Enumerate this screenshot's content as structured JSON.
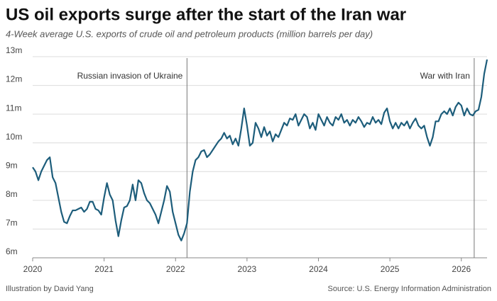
{
  "chart_data": {
    "type": "line",
    "title": "US oil exports surge after the start of the Iran war",
    "subtitle": "4-Week average U.S. exports of crude oil and petroleum products (million barrels per day)",
    "credit": "Illustration by David Yang",
    "source": "Source: U.S. Energy Information Administration",
    "color": "#1d5d7b",
    "grid": true,
    "xlim": [
      2020,
      2026.36
    ],
    "xticks": [
      2020,
      2021,
      2022,
      2023,
      2024,
      2025,
      2026
    ],
    "ylim": [
      6,
      13
    ],
    "yticks": [
      {
        "value": 6,
        "label": "6m"
      },
      {
        "value": 7,
        "label": "7m"
      },
      {
        "value": 8,
        "label": "8m"
      },
      {
        "value": 9,
        "label": "9m"
      },
      {
        "value": 10,
        "label": "10m"
      },
      {
        "value": 11,
        "label": "11m"
      },
      {
        "value": 12,
        "label": "12m"
      },
      {
        "value": 13,
        "label": "13m"
      }
    ],
    "annotations": [
      {
        "text": "Russian invasion of Ukraine",
        "x": 2022.16
      },
      {
        "text": "War with Iran",
        "x": 2026.18
      }
    ],
    "x": [
      2020,
      2020.04,
      2020.08,
      2020.12,
      2020.16,
      2020.2,
      2020.24,
      2020.28,
      2020.32,
      2020.36,
      2020.4,
      2020.44,
      2020.48,
      2020.52,
      2020.56,
      2020.6,
      2020.64,
      2020.68,
      2020.72,
      2020.76,
      2020.8,
      2020.84,
      2020.88,
      2020.92,
      2020.96,
      2021,
      2021.04,
      2021.08,
      2021.12,
      2021.16,
      2021.2,
      2021.24,
      2021.28,
      2021.32,
      2021.36,
      2021.4,
      2021.44,
      2021.48,
      2021.52,
      2021.56,
      2021.6,
      2021.64,
      2021.68,
      2021.72,
      2021.76,
      2021.8,
      2021.84,
      2021.88,
      2021.92,
      2021.96,
      2022,
      2022.04,
      2022.08,
      2022.12,
      2022.16,
      2022.2,
      2022.24,
      2022.28,
      2022.32,
      2022.36,
      2022.4,
      2022.44,
      2022.48,
      2022.52,
      2022.56,
      2022.6,
      2022.64,
      2022.68,
      2022.72,
      2022.76,
      2022.8,
      2022.84,
      2022.88,
      2022.92,
      2022.96,
      2023,
      2023.04,
      2023.08,
      2023.12,
      2023.16,
      2023.2,
      2023.24,
      2023.28,
      2023.32,
      2023.36,
      2023.4,
      2023.44,
      2023.48,
      2023.52,
      2023.56,
      2023.6,
      2023.64,
      2023.68,
      2023.72,
      2023.76,
      2023.8,
      2023.84,
      2023.88,
      2023.92,
      2023.96,
      2024,
      2024.04,
      2024.08,
      2024.12,
      2024.16,
      2024.2,
      2024.24,
      2024.28,
      2024.32,
      2024.36,
      2024.4,
      2024.44,
      2024.48,
      2024.52,
      2024.56,
      2024.6,
      2024.64,
      2024.68,
      2024.72,
      2024.76,
      2024.8,
      2024.84,
      2024.88,
      2024.92,
      2024.96,
      2025,
      2025.04,
      2025.08,
      2025.12,
      2025.16,
      2025.2,
      2025.24,
      2025.28,
      2025.32,
      2025.36,
      2025.4,
      2025.44,
      2025.48,
      2025.52,
      2025.56,
      2025.6,
      2025.64,
      2025.68,
      2025.72,
      2025.76,
      2025.8,
      2025.84,
      2025.88,
      2025.92,
      2025.96,
      2026,
      2026.04,
      2026.08,
      2026.12,
      2026.16,
      2026.2,
      2026.24,
      2026.28,
      2026.32,
      2026.36
    ],
    "values": [
      9.15,
      9.0,
      8.7,
      9.0,
      9.2,
      9.4,
      9.5,
      8.8,
      8.6,
      8.1,
      7.6,
      7.25,
      7.2,
      7.45,
      7.65,
      7.65,
      7.7,
      7.75,
      7.6,
      7.7,
      7.95,
      7.95,
      7.7,
      7.65,
      7.5,
      8.1,
      8.6,
      8.2,
      8.0,
      7.3,
      6.75,
      7.3,
      7.75,
      7.8,
      8.0,
      8.55,
      8.0,
      8.7,
      8.6,
      8.25,
      8.0,
      7.9,
      7.7,
      7.5,
      7.2,
      7.6,
      8.0,
      8.5,
      8.3,
      7.6,
      7.2,
      6.8,
      6.6,
      6.85,
      7.2,
      8.3,
      9.0,
      9.4,
      9.5,
      9.7,
      9.75,
      9.5,
      9.6,
      9.75,
      9.9,
      10.05,
      10.15,
      10.35,
      10.15,
      10.25,
      9.95,
      10.15,
      9.9,
      10.5,
      11.2,
      10.6,
      9.9,
      10.0,
      10.7,
      10.5,
      10.2,
      10.55,
      10.25,
      10.4,
      10.05,
      10.3,
      10.2,
      10.45,
      10.7,
      10.6,
      10.85,
      10.8,
      11.0,
      10.6,
      10.8,
      11.0,
      10.9,
      10.5,
      10.7,
      10.45,
      11.0,
      10.8,
      10.6,
      10.9,
      10.7,
      10.6,
      10.9,
      10.8,
      11.0,
      10.7,
      10.8,
      10.6,
      10.8,
      10.7,
      10.9,
      10.75,
      10.55,
      10.7,
      10.65,
      10.9,
      10.7,
      10.8,
      10.65,
      11.05,
      11.2,
      10.75,
      10.5,
      10.7,
      10.5,
      10.7,
      10.6,
      10.75,
      10.5,
      10.7,
      10.85,
      10.6,
      10.5,
      10.6,
      10.2,
      9.9,
      10.2,
      10.75,
      10.75,
      11.0,
      11.1,
      11.0,
      11.2,
      10.95,
      11.25,
      11.4,
      11.3,
      10.95,
      11.2,
      11.0,
      10.95,
      11.1,
      11.15,
      11.6,
      12.4,
      12.9
    ]
  }
}
